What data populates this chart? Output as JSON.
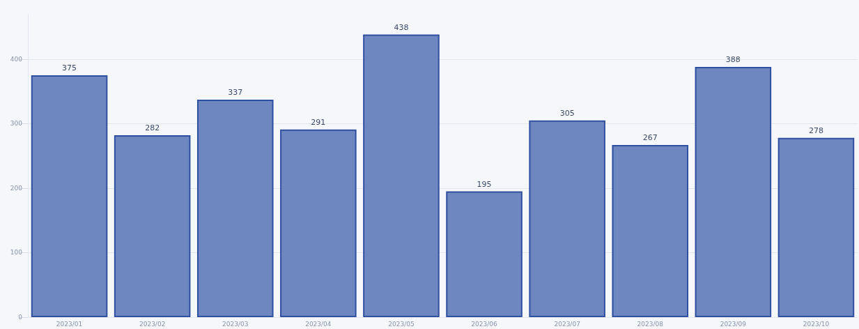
{
  "chart_data": {
    "type": "bar",
    "categories": [
      "2023/01",
      "2023/02",
      "2023/03",
      "2023/04",
      "2023/05",
      "2023/06",
      "2023/07",
      "2023/08",
      "2023/09",
      "2023/10"
    ],
    "values": [
      375,
      282,
      337,
      291,
      438,
      195,
      305,
      267,
      388,
      278
    ],
    "color": "#6f87c0",
    "data_labels": true,
    "ylim": [
      0,
      470
    ],
    "yticks": [
      0,
      100,
      200,
      300,
      400
    ],
    "grid": "y"
  }
}
